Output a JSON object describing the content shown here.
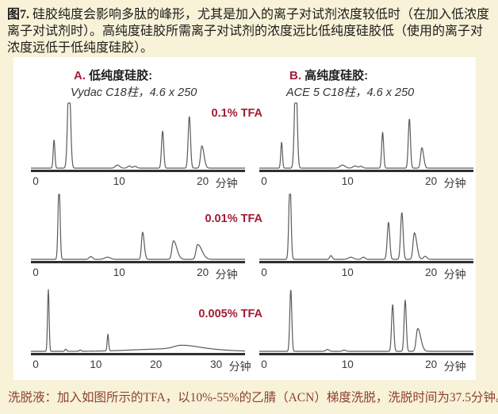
{
  "page": {
    "caption_label": "图7.",
    "caption_body": " 硅胶纯度会影响多肽的峰形，尤其是加入的离子对试剂浓度较低时（在加入低浓度离子对试剂时）。高纯度硅胶所需离子对试剂的浓度远比低纯度硅胶低（使用的离子对浓度远低于低纯度硅胶）。",
    "footer": "洗脱液：加入如图所示的TFA，以10%-55%的乙腈（ACN）梯度洗脱，洗脱时间为37.5分钟。",
    "colors": {
      "background": "#f7f2d8",
      "panel": "#ffffff",
      "accent_crimson": "#a31c35",
      "footer_text": "#8e4030",
      "curve": "#5a5b5f",
      "axis": "#2f2f31"
    }
  },
  "columns": [
    {
      "label_prefix": "A.",
      "label": "低纯度硅胶:",
      "subtitle": "Vydac C18柱，4.6 x 250"
    },
    {
      "label_prefix": "B.",
      "label": "高纯度硅胶:",
      "subtitle": "ACE 5 C18柱，4.6 x 250"
    }
  ],
  "chart_data": [
    {
      "type": "line",
      "panel": "A1",
      "column": "A",
      "row": 1,
      "tfa_label": "0.1% TFA",
      "xlabel": "分钟",
      "ticks": [
        0,
        10,
        20
      ],
      "xlim": [
        0,
        24.5
      ],
      "grid": false,
      "peaks_format": "[retention_min, rel_height(1=full scale, >1 clipped), sigma_min, tail_mult]",
      "peaks": [
        [
          2.2,
          0.46,
          0.1,
          1
        ],
        [
          4.0,
          1.55,
          0.17,
          1
        ],
        [
          9.8,
          0.05,
          0.25,
          1
        ],
        [
          11.2,
          0.035,
          0.2,
          1
        ],
        [
          11.9,
          0.03,
          0.2,
          1
        ],
        [
          15.2,
          0.6,
          0.13,
          1
        ],
        [
          18.4,
          0.84,
          0.14,
          1
        ],
        [
          19.9,
          0.36,
          0.16,
          1.6
        ]
      ]
    },
    {
      "type": "line",
      "panel": "A2",
      "column": "A",
      "row": 2,
      "tfa_label": "0.01% TFA",
      "xlabel": "分钟",
      "ticks": [
        0,
        10,
        20
      ],
      "xlim": [
        0,
        24.5
      ],
      "grid": false,
      "peaks": [
        [
          2.8,
          1.25,
          0.12,
          1
        ],
        [
          6.6,
          0.045,
          0.2,
          1
        ],
        [
          8.6,
          0.035,
          0.35,
          1
        ],
        [
          12.8,
          0.44,
          0.13,
          1.5
        ],
        [
          16.5,
          0.3,
          0.18,
          2.2
        ],
        [
          19.4,
          0.24,
          0.2,
          2.5
        ]
      ]
    },
    {
      "type": "line",
      "panel": "A3",
      "column": "A",
      "row": 3,
      "tfa_label": "0.005% TFA",
      "xlabel": "分钟",
      "ticks": [
        0,
        10,
        20,
        30
      ],
      "xlim": [
        0,
        34
      ],
      "grid": false,
      "peaks": [
        [
          2.1,
          1.0,
          0.13,
          1
        ],
        [
          5.0,
          0.035,
          0.15,
          1
        ],
        [
          7.4,
          0.02,
          0.15,
          1
        ],
        [
          12.0,
          0.27,
          0.12,
          1
        ],
        [
          20.0,
          0.03,
          5,
          1
        ],
        [
          24.2,
          0.05,
          1.2,
          2
        ],
        [
          27.0,
          0.035,
          4,
          1
        ]
      ]
    },
    {
      "type": "line",
      "panel": "B1",
      "column": "B",
      "row": 1,
      "tfa_label": "",
      "xlabel": "分钟",
      "ticks": [
        0,
        10,
        20
      ],
      "xlim": [
        0,
        24.5
      ],
      "grid": false,
      "peaks": [
        [
          2.1,
          0.42,
          0.1,
          1
        ],
        [
          3.8,
          1.55,
          0.16,
          1
        ],
        [
          9.4,
          0.05,
          0.3,
          1
        ],
        [
          10.9,
          0.035,
          0.25,
          1
        ],
        [
          11.6,
          0.03,
          0.2,
          1
        ],
        [
          14.2,
          0.58,
          0.12,
          1
        ],
        [
          17.4,
          0.8,
          0.13,
          1
        ],
        [
          18.9,
          0.33,
          0.15,
          1.4
        ]
      ]
    },
    {
      "type": "line",
      "panel": "B2",
      "column": "B",
      "row": 2,
      "tfa_label": "",
      "xlabel": "分钟",
      "ticks": [
        0,
        10,
        20
      ],
      "xlim": [
        0,
        24.5
      ],
      "grid": false,
      "peaks": [
        [
          3.1,
          1.3,
          0.13,
          1
        ],
        [
          8.0,
          0.06,
          0.15,
          1
        ],
        [
          10.4,
          0.035,
          0.3,
          1
        ],
        [
          11.9,
          0.035,
          0.2,
          1
        ],
        [
          14.9,
          0.6,
          0.15,
          1
        ],
        [
          16.5,
          0.76,
          0.15,
          1
        ],
        [
          18.0,
          0.43,
          0.16,
          1.8
        ],
        [
          19.3,
          0.05,
          0.2,
          1
        ]
      ]
    },
    {
      "type": "line",
      "panel": "B3",
      "column": "B",
      "row": 3,
      "tfa_label": "",
      "xlabel": "分钟",
      "ticks": [
        0,
        10,
        20
      ],
      "xlim": [
        0,
        24.5
      ],
      "grid": false,
      "peaks": [
        [
          3.2,
          1.0,
          0.12,
          1
        ],
        [
          7.6,
          0.03,
          0.2,
          1
        ],
        [
          9.6,
          0.02,
          0.2,
          1
        ],
        [
          15.4,
          0.76,
          0.13,
          1
        ],
        [
          16.9,
          0.83,
          0.13,
          1
        ],
        [
          18.4,
          0.37,
          0.18,
          2.0
        ]
      ]
    }
  ]
}
